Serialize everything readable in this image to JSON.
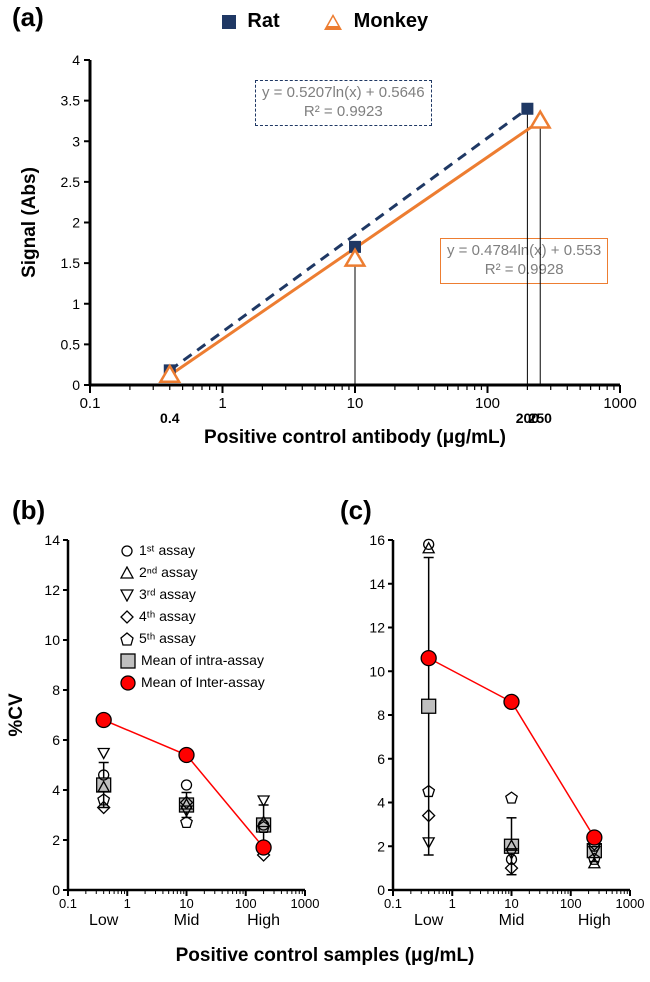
{
  "figure_width": 650,
  "figure_height": 982,
  "background_color": "#ffffff",
  "colors": {
    "rat": "#1f3864",
    "monkey": "#ed7d31",
    "eq_text": "#7f7f7f",
    "gray_fill": "#bfbfbf",
    "red": "#ff0000",
    "black": "#000000"
  },
  "panel_a": {
    "label": "(a)",
    "legend": {
      "rat": "Rat",
      "monkey": "Monkey"
    },
    "type": "scatter-log-linefit",
    "x_scale": "log",
    "y_scale": "linear",
    "xlim": [
      0.1,
      1000
    ],
    "ylim": [
      0,
      4
    ],
    "ytick_step": 0.5,
    "xticks_major": [
      0.1,
      1,
      10,
      100,
      1000
    ],
    "extra_xticks": [
      0.4,
      200,
      250
    ],
    "xlabel": "Positive control antibody (μg/mL)",
    "ylabel": "Signal (Abs)",
    "series": [
      {
        "name": "Rat",
        "marker": "square-filled",
        "color": "#1f3864",
        "marker_size": 12,
        "line_style": "dashed",
        "line_width": 3,
        "points": [
          {
            "x": 0.4,
            "y": 0.18
          },
          {
            "x": 10,
            "y": 1.7
          },
          {
            "x": 200,
            "y": 3.4
          }
        ],
        "equation": "y = 0.5207ln(x) + 0.5646",
        "r2": "R² = 0.9923",
        "eq_box_border": "dashed"
      },
      {
        "name": "Monkey",
        "marker": "triangle-open",
        "color": "#ed7d31",
        "marker_size": 14,
        "line_style": "solid",
        "line_width": 3,
        "points": [
          {
            "x": 0.4,
            "y": 0.12
          },
          {
            "x": 10,
            "y": 1.55
          },
          {
            "x": 250,
            "y": 3.25
          }
        ],
        "equation": "y = 0.4784ln(x) + 0.553",
        "r2": "R² = 0.9928",
        "eq_box_border": "solid"
      }
    ],
    "drop_lines": [
      {
        "x": 10,
        "y_from": 1.55
      },
      {
        "x": 200,
        "y_from": 3.4
      },
      {
        "x": 250,
        "y_from": 3.25
      }
    ]
  },
  "panel_b": {
    "label": "(b)",
    "type": "scatter-log-categories",
    "x_scale": "log",
    "xlim": [
      0.1,
      1000
    ],
    "ylim": [
      0,
      14
    ],
    "ytick_step": 2,
    "xticks_major": [
      0.1,
      1,
      10,
      100,
      1000
    ],
    "category_positions": [
      0.4,
      10,
      200
    ],
    "category_labels": [
      "Low",
      "Mid",
      "High"
    ],
    "xlabel": "Positive control samples (μg/mL)",
    "ylabel": "%CV",
    "legend_items": [
      {
        "marker": "circle-open",
        "label": "1ˢᵗ assay"
      },
      {
        "marker": "triangle-up-open",
        "label": "2ⁿᵈ assay"
      },
      {
        "marker": "triangle-down-open",
        "label": "3ʳᵈ assay"
      },
      {
        "marker": "diamond-open",
        "label": "4ᵗʰ assay"
      },
      {
        "marker": "pentagon-open",
        "label": "5ᵗʰ assay"
      },
      {
        "marker": "square-gray",
        "label": "Mean of intra-assay"
      },
      {
        "marker": "circle-red",
        "label": "Mean of Inter-assay"
      }
    ],
    "assay_points": {
      "Low": {
        "circle": 4.6,
        "tri_up": 4.1,
        "tri_down": 5.5,
        "diamond": 3.3,
        "pentagon": 3.6
      },
      "Mid": {
        "circle": 4.2,
        "tri_up": 3.4,
        "tri_down": 3.2,
        "diamond": 3.5,
        "pentagon": 2.7
      },
      "High": {
        "circle": 2.6,
        "tri_up": 2.7,
        "tri_down": 3.6,
        "diamond": 1.4,
        "pentagon": 2.5
      }
    },
    "intra_mean": {
      "Low": 4.2,
      "Mid": 3.4,
      "High": 2.6
    },
    "intra_error": {
      "Low": 0.9,
      "Mid": 0.5,
      "High": 0.8
    },
    "inter_mean": {
      "Low": 6.8,
      "Mid": 5.4,
      "High": 1.7
    },
    "marker_sizes": {
      "open": 10,
      "intra_square": 14,
      "inter_circle": 15
    },
    "inter_line_color": "#ff0000",
    "inter_line_width": 1.5
  },
  "panel_c": {
    "label": "(c)",
    "type": "scatter-log-categories",
    "x_scale": "log",
    "xlim": [
      0.1,
      1000
    ],
    "ylim": [
      0,
      16
    ],
    "ytick_step": 2,
    "xticks_major": [
      0.1,
      1,
      10,
      100,
      1000
    ],
    "category_positions": [
      0.4,
      10,
      250
    ],
    "category_labels": [
      "Low",
      "Mid",
      "High"
    ],
    "assay_points": {
      "Low": {
        "circle": 15.8,
        "tri_up": 15.6,
        "tri_down": 2.2,
        "diamond": 3.4,
        "pentagon": 4.5
      },
      "Mid": {
        "circle": 1.4,
        "tri_up": 2.0,
        "tri_down": 1.7,
        "diamond": 1.0,
        "pentagon": 4.2
      },
      "High": {
        "circle": 2.0,
        "tri_up": 1.2,
        "tri_down": 1.8,
        "diamond": 2.1,
        "pentagon": 1.4
      }
    },
    "intra_mean": {
      "Low": 8.4,
      "Mid": 2.0,
      "High": 1.8
    },
    "intra_error": {
      "Low": 6.8,
      "Mid": 1.3,
      "High": 0.5
    },
    "inter_mean": {
      "Low": 10.6,
      "Mid": 8.6,
      "High": 2.4
    },
    "marker_sizes": {
      "open": 10,
      "intra_square": 14,
      "inter_circle": 15
    },
    "inter_line_color": "#ff0000",
    "inter_line_width": 1.5
  }
}
